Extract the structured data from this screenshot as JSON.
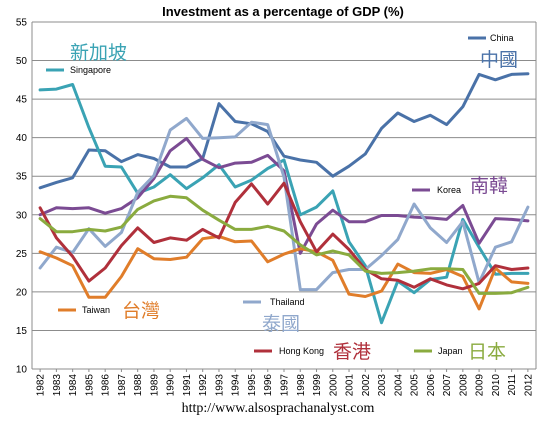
{
  "chart_data": {
    "type": "line",
    "title": "Investment as a percentage of GDP (%)",
    "xlabel": "",
    "ylabel": "",
    "ylim": [
      10,
      55
    ],
    "yticks": [
      "10",
      "15",
      "20",
      "25",
      "30",
      "35",
      "40",
      "45",
      "50",
      "55"
    ],
    "grid": true,
    "x": [
      "1982",
      "1983",
      "1984",
      "1985",
      "1986",
      "1987",
      "1988",
      "1989",
      "1990",
      "1991",
      "1992",
      "1993",
      "1994",
      "1995",
      "1996",
      "1997",
      "1998",
      "1999",
      "2000",
      "2001",
      "2002",
      "2003",
      "2004",
      "2005",
      "2006",
      "2007",
      "2008",
      "2009",
      "2010",
      "2011",
      "2012"
    ],
    "series": [
      {
        "name": "China",
        "cn": "中國",
        "color": "#4a72a8",
        "values": [
          33.5,
          34.2,
          34.8,
          38.4,
          38.3,
          36.9,
          37.8,
          37.3,
          36.2,
          36.2,
          37.3,
          44.4,
          42.1,
          41.8,
          40.8,
          37.6,
          37.1,
          36.8,
          35.0,
          36.3,
          37.9,
          41.2,
          43.2,
          42.1,
          42.9,
          41.7,
          44.0,
          48.2,
          47.5,
          48.2,
          48.3
        ]
      },
      {
        "name": "Singapore",
        "cn": "新加坡",
        "color": "#3aa3b4",
        "values": [
          46.2,
          46.3,
          46.9,
          41.3,
          36.3,
          36.2,
          32.8,
          33.6,
          35.2,
          33.4,
          34.8,
          36.5,
          33.6,
          34.5,
          36.0,
          37.1,
          30.0,
          31.0,
          33.1,
          26.5,
          23.4,
          16.0,
          21.4,
          19.9,
          21.6,
          21.9,
          29.4,
          25.8,
          22.3,
          22.4,
          22.4
        ]
      },
      {
        "name": "Korea",
        "cn": "南韓",
        "color": "#7b4b93",
        "values": [
          30.0,
          30.9,
          30.8,
          30.9,
          30.2,
          30.8,
          32.2,
          34.7,
          38.3,
          39.9,
          37.2,
          36.1,
          36.7,
          36.8,
          37.7,
          35.7,
          25.0,
          28.8,
          30.6,
          29.1,
          29.1,
          29.9,
          29.9,
          29.7,
          29.6,
          29.4,
          31.2,
          26.3,
          29.5,
          29.4,
          29.2
        ]
      },
      {
        "name": "Thailand",
        "cn": "泰國",
        "color": "#90a8cc",
        "values": [
          23.1,
          25.8,
          25.1,
          28.2,
          25.9,
          27.7,
          32.9,
          35.1,
          41.0,
          42.5,
          39.9,
          40.0,
          40.1,
          42.0,
          41.7,
          34.9,
          20.3,
          20.3,
          22.5,
          22.9,
          22.9,
          24.7,
          26.8,
          31.4,
          28.3,
          26.4,
          29.1,
          21.2,
          25.8,
          26.5,
          31.0
        ]
      },
      {
        "name": "Taiwan",
        "cn": "台灣",
        "color": "#e07d2a",
        "values": [
          25.2,
          24.4,
          23.4,
          19.3,
          19.3,
          22.0,
          25.6,
          24.3,
          24.2,
          24.5,
          26.9,
          27.2,
          26.5,
          26.6,
          23.9,
          24.9,
          25.6,
          25.2,
          24.1,
          19.7,
          19.4,
          20.1,
          23.6,
          22.5,
          22.4,
          22.9,
          22.0,
          17.8,
          23.1,
          21.3,
          21.1
        ]
      },
      {
        "name": "Hong Kong",
        "cn": "香港",
        "color": "#b0303b",
        "values": [
          30.9,
          27.0,
          24.6,
          21.4,
          23.1,
          26.0,
          28.3,
          26.4,
          27.0,
          26.7,
          28.1,
          27.0,
          31.6,
          34.0,
          31.4,
          34.1,
          29.1,
          25.2,
          27.5,
          25.5,
          22.9,
          21.7,
          21.5,
          20.6,
          21.7,
          20.9,
          20.4,
          21.1,
          23.4,
          22.9,
          23.1
        ]
      },
      {
        "name": "Japan",
        "cn": "日本",
        "color": "#8aab3f",
        "values": [
          29.5,
          27.8,
          27.8,
          28.1,
          27.9,
          28.4,
          30.7,
          31.8,
          32.4,
          32.2,
          30.6,
          29.3,
          28.1,
          28.1,
          28.5,
          27.9,
          26.1,
          24.8,
          25.3,
          24.8,
          22.7,
          22.4,
          22.5,
          22.7,
          23.0,
          23.0,
          22.9,
          19.8,
          19.8,
          19.9,
          20.6
        ]
      }
    ]
  },
  "source_text": "http://www.alsosprachanalyst.com"
}
